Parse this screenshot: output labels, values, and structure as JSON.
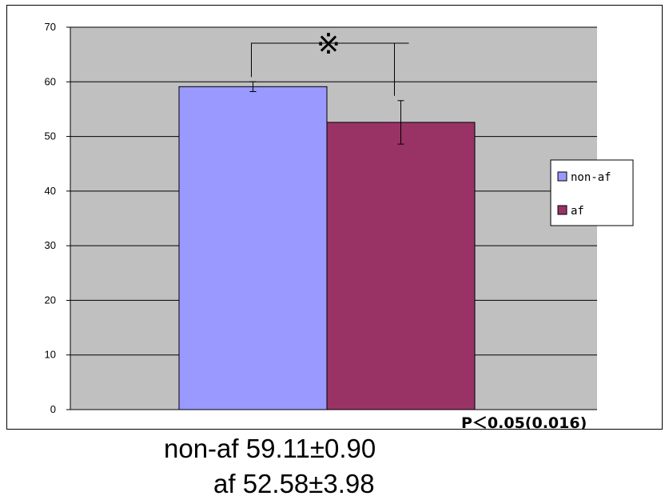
{
  "chart_data": {
    "type": "bar",
    "categories": [
      ""
    ],
    "series": [
      {
        "name": "non-af",
        "values": [
          59.11
        ],
        "error": [
          0.9
        ],
        "color": "#9999ff"
      },
      {
        "name": "af",
        "values": [
          52.58
        ],
        "error": [
          3.98
        ],
        "color": "#993366"
      }
    ],
    "ylim": [
      0,
      70
    ],
    "yticks": [
      0,
      10,
      20,
      30,
      40,
      50,
      60,
      70
    ],
    "grid": true,
    "plot_background": "#c0c0c0",
    "legend_position": "right",
    "significance_marker": "※",
    "p_value_text": "P＜0.05(0.016)",
    "title": "",
    "xlabel": "",
    "ylabel": ""
  },
  "stats": {
    "line1": "non-af 59.11±0.90",
    "line2": "af 52.58±3.98"
  }
}
